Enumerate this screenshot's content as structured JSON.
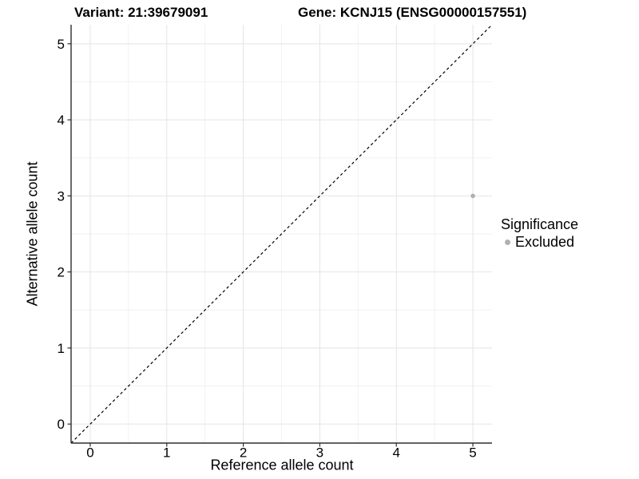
{
  "chart_data": {
    "type": "scatter",
    "title_left": "Variant: 21:39679091",
    "title_right": "Gene: KCNJ15 (ENSG00000157551)",
    "xlabel": "Reference allele count",
    "ylabel": "Alternative allele count",
    "xlim": [
      -0.25,
      5.25
    ],
    "ylim": [
      -0.25,
      5.25
    ],
    "x_ticks": [
      0,
      1,
      2,
      3,
      4,
      5
    ],
    "y_ticks": [
      0,
      1,
      2,
      3,
      4,
      5
    ],
    "x_minor_ticks": [
      0.5,
      1.5,
      2.5,
      3.5,
      4.5
    ],
    "y_minor_ticks": [
      0.5,
      1.5,
      2.5,
      3.5,
      4.5
    ],
    "grid": "major+minor",
    "points": [
      {
        "x": 5,
        "y": 3,
        "series": "Excluded",
        "color": "#b0b0b0"
      }
    ],
    "reference_line": {
      "slope": 1,
      "intercept": 0,
      "style": "dashed",
      "color": "#000000"
    },
    "legend": {
      "title": "Significance",
      "position": "right",
      "items": [
        {
          "label": "Excluded",
          "color": "#b0b0b0",
          "marker": "circle"
        }
      ]
    },
    "colors": {
      "panel_bg": "#ffffff",
      "grid_major": "#e4e4e4",
      "grid_minor": "#f2f2f2",
      "axis_line": "#2e2e2e",
      "text": "#000000"
    }
  }
}
